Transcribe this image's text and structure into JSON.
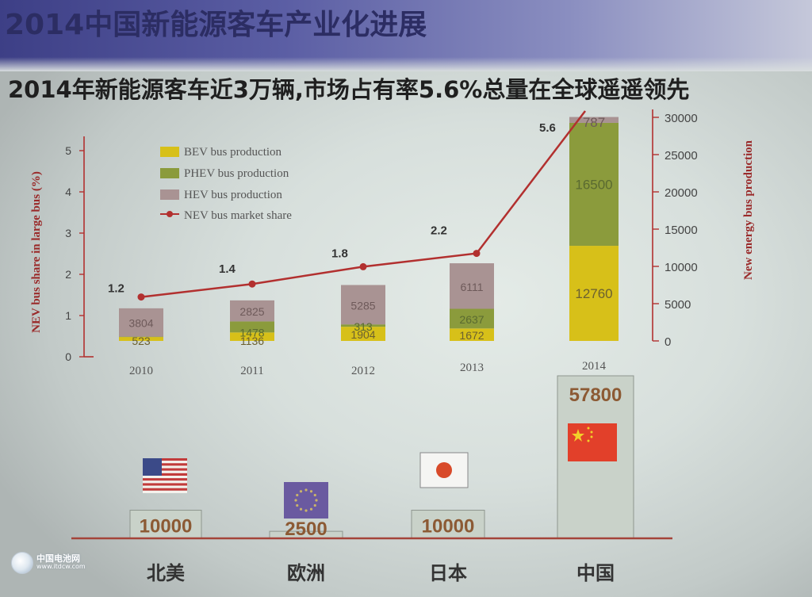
{
  "slide": {
    "title": "2014中国新能源客车产业化进展",
    "subtitle": "2014年新能源客车近3万辆,市场占有率5.6%总量在全球遥遥领先",
    "watermark": {
      "name": "中国电池网",
      "url": "www.itdcw.com"
    }
  },
  "colors": {
    "bev": "#d7c019",
    "phev": "#8b9b3c",
    "hev": "#a99393",
    "line": "#b2302f",
    "bar2": "#c9d2c9"
  },
  "chart_data": [
    {
      "type": "bar",
      "stacked": true,
      "title": "",
      "xlabel": "",
      "ylabel": "NEV bus share in large bus (%)",
      "y2label": "New energy bus production",
      "categories": [
        "2010",
        "2011",
        "2012",
        "2013",
        "2014"
      ],
      "ylim": [
        0,
        5
      ],
      "y_ticks": [
        "0",
        "1",
        "2",
        "3",
        "4",
        "5"
      ],
      "y2lim": [
        0,
        30000
      ],
      "y2_ticks": [
        "0",
        "5000",
        "10000",
        "15000",
        "20000",
        "25000",
        "30000"
      ],
      "legend_position": "top-left",
      "series": [
        {
          "name": "BEV bus production",
          "values": [
            523,
            1136,
            1904,
            1672,
            12760
          ],
          "labels": [
            "523",
            "1136",
            "1904",
            "1672",
            "12760"
          ]
        },
        {
          "name": "PHEV bus production",
          "values": [
            50,
            1478,
            313,
            2637,
            16500
          ],
          "labels": [
            "",
            "1478",
            "313",
            "2637",
            "16500"
          ]
        },
        {
          "name": "HEV bus production",
          "values": [
            3804,
            2825,
            5285,
            6111,
            787
          ],
          "labels": [
            "3804",
            "2825",
            "5285",
            "6111",
            "787"
          ]
        }
      ],
      "line": {
        "name": "NEV bus market share",
        "values": [
          1.2,
          1.4,
          1.8,
          2.2,
          5.6
        ],
        "labels": [
          "1.2",
          "1.4",
          "1.8",
          "2.2",
          "5.6"
        ]
      }
    },
    {
      "type": "bar",
      "title": "",
      "categories": [
        "北美",
        "欧洲",
        "日本",
        "中国"
      ],
      "values": [
        10000,
        2500,
        10000,
        57800
      ],
      "value_labels": [
        "10000",
        "2500",
        "10000",
        "57800"
      ],
      "flags": [
        "usa-flag-icon",
        "eu-flag-icon",
        "japan-flag-icon",
        "china-flag-icon"
      ]
    }
  ]
}
